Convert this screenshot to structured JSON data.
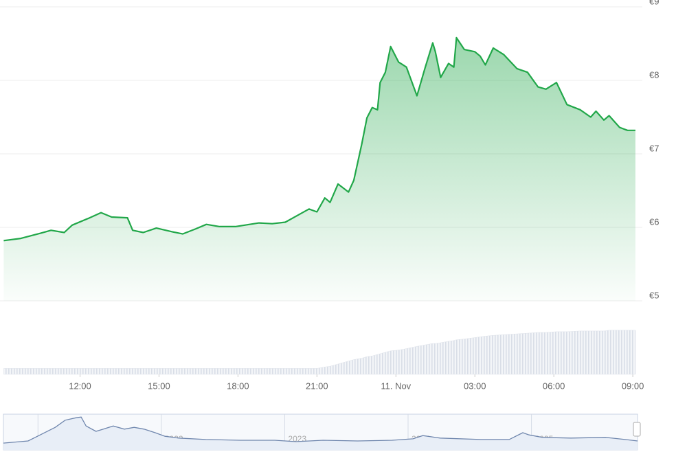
{
  "chart_data": [
    {
      "type": "line",
      "x": [
        9.1,
        9.75,
        10.5,
        10.9,
        11.4,
        11.7,
        12.3,
        12.8,
        13.2,
        13.8,
        14.0,
        14.4,
        14.9,
        15.5,
        15.9,
        16.4,
        16.8,
        17.3,
        17.9,
        18.8,
        19.3,
        19.8,
        20.3,
        20.7,
        21.0,
        21.3,
        21.5,
        21.8,
        22.2,
        22.4,
        22.7,
        22.9,
        23.1,
        23.3,
        23.4,
        23.6,
        23.8,
        24.1,
        24.4,
        24.8,
        25.1,
        25.4,
        25.5,
        25.7,
        26.0,
        26.2,
        26.3,
        26.6,
        27.0,
        27.2,
        27.4,
        27.7,
        28.1,
        28.6,
        29.0,
        29.4,
        29.7,
        30.1,
        30.5,
        31.0,
        31.4,
        31.6,
        31.9,
        32.1,
        32.5,
        32.8,
        33.1
      ],
      "series": [
        {
          "color": "#21a749",
          "values": [
            5.82,
            5.85,
            5.92,
            5.96,
            5.93,
            6.03,
            6.12,
            6.2,
            6.14,
            6.13,
            5.96,
            5.93,
            5.99,
            5.94,
            5.91,
            5.98,
            6.04,
            6.01,
            6.01,
            6.06,
            6.05,
            6.07,
            6.17,
            6.25,
            6.21,
            6.4,
            6.34,
            6.59,
            6.48,
            6.64,
            7.13,
            7.49,
            7.63,
            7.6,
            7.97,
            8.11,
            8.46,
            8.25,
            8.18,
            7.79,
            8.16,
            8.51,
            8.39,
            8.04,
            8.23,
            8.18,
            8.58,
            8.42,
            8.39,
            8.33,
            8.21,
            8.44,
            8.35,
            8.16,
            8.11,
            7.91,
            7.88,
            7.97,
            7.67,
            7.6,
            7.5,
            7.58,
            7.46,
            7.52,
            7.36,
            7.32,
            7.32
          ]
        },
        {
          "color": "#dfe3ea",
          "axis": "y2",
          "values": [
            8,
            8,
            8,
            8,
            8,
            8,
            8,
            8,
            8,
            8,
            8,
            8,
            8,
            8,
            8,
            8,
            8,
            8,
            8,
            8,
            8,
            8,
            8,
            8,
            8,
            10,
            11,
            14,
            18,
            20,
            22,
            24,
            25,
            27,
            28,
            30,
            32,
            33,
            35,
            38,
            40,
            42,
            42,
            43,
            45,
            46,
            47,
            48,
            50,
            51,
            52,
            53,
            54,
            55,
            56,
            57,
            57,
            58,
            58,
            59,
            59,
            59,
            59,
            60,
            60,
            60,
            60
          ]
        }
      ],
      "xlim": [
        9.09,
        33.18
      ],
      "xticks": [
        {
          "value": 12,
          "label": "12:00"
        },
        {
          "value": 15,
          "label": "15:00"
        },
        {
          "value": 18,
          "label": "18:00"
        },
        {
          "value": 21,
          "label": "21:00"
        },
        {
          "value": 24,
          "label": "11. Nov"
        },
        {
          "value": 27,
          "label": "03:00"
        },
        {
          "value": 30,
          "label": "06:00"
        },
        {
          "value": 33,
          "label": "09:00"
        }
      ],
      "ylim": [
        5,
        9
      ],
      "yticks": [
        {
          "value": 5,
          "label": "€5"
        },
        {
          "value": 6,
          "label": "€6"
        },
        {
          "value": 7,
          "label": "€7"
        },
        {
          "value": 8,
          "label": "€8"
        },
        {
          "value": 9,
          "label": "€9"
        }
      ],
      "y2lim": [
        0,
        100
      ],
      "grid": true
    },
    {
      "type": "line",
      "x": [
        2020.72,
        2020.92,
        2021.03,
        2021.14,
        2021.22,
        2021.31,
        2021.35,
        2021.39,
        2021.47,
        2021.53,
        2021.61,
        2021.7,
        2021.78,
        2021.86,
        2021.95,
        2022.03,
        2022.14,
        2022.36,
        2022.64,
        2022.92,
        2023.09,
        2023.31,
        2023.59,
        2023.87,
        2024.04,
        2024.12,
        2024.26,
        2024.59,
        2024.82,
        2024.93,
        2024.98,
        2025.09,
        2025.32,
        2025.6,
        2025.76,
        2025.86
      ],
      "values": [
        19,
        25,
        44,
        63,
        83,
        90,
        92,
        67,
        52,
        58,
        67,
        58,
        63,
        58,
        48,
        38,
        33,
        29,
        27,
        27,
        23,
        27,
        25,
        27,
        31,
        40,
        33,
        29,
        29,
        48,
        42,
        35,
        33,
        35,
        29,
        25
      ],
      "color": "#6f86ad",
      "xlim": [
        2020.72,
        2025.86
      ],
      "xticks": [
        2021,
        2022,
        2023,
        2024,
        2025
      ],
      "ylim": [
        0,
        100
      ]
    }
  ]
}
